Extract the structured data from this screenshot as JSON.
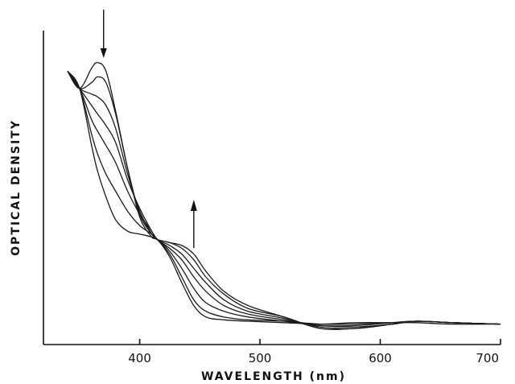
{
  "chart_data": {
    "type": "line",
    "title": "",
    "xlabel": "WAVELENGTH (nm)",
    "ylabel": "OPTICAL DENSITY",
    "xlim": [
      320,
      700
    ],
    "ylim": [
      0,
      1
    ],
    "x_ticks": [
      400,
      500,
      600,
      700
    ],
    "x_tick_labels": [
      "400",
      "500",
      "600",
      "700"
    ],
    "y_ticks_shown": false,
    "grid": false,
    "legend": "none",
    "line_color": "#1a1a1a",
    "arrows": [
      {
        "x": 370,
        "direction": "down"
      },
      {
        "x": 445,
        "direction": "up"
      }
    ],
    "series": [
      {
        "x": [
          340,
          350,
          360,
          365,
          372,
          380,
          390,
          400,
          410,
          415,
          425,
          435,
          445,
          455,
          470,
          490,
          520,
          550,
          580,
          610,
          630,
          660,
          700
        ],
        "values": [
          0.92,
          0.86,
          0.93,
          0.95,
          0.92,
          0.78,
          0.58,
          0.41,
          0.34,
          0.33,
          0.27,
          0.18,
          0.1,
          0.06,
          0.05,
          0.045,
          0.04,
          0.035,
          0.04,
          0.04,
          0.04,
          0.035,
          0.035
        ]
      },
      {
        "x": [
          340,
          350,
          360,
          365,
          372,
          380,
          390,
          400,
          410,
          415,
          425,
          435,
          445,
          455,
          470,
          490,
          520,
          550,
          580,
          610,
          630,
          660,
          700
        ],
        "values": [
          0.92,
          0.86,
          0.88,
          0.9,
          0.88,
          0.77,
          0.58,
          0.42,
          0.35,
          0.33,
          0.28,
          0.2,
          0.12,
          0.08,
          0.06,
          0.05,
          0.045,
          0.035,
          0.035,
          0.04,
          0.045,
          0.04,
          0.035
        ]
      },
      {
        "x": [
          340,
          350,
          360,
          365,
          372,
          380,
          390,
          400,
          410,
          415,
          425,
          435,
          445,
          455,
          470,
          490,
          520,
          550,
          580,
          610,
          630,
          660,
          700
        ],
        "values": [
          0.92,
          0.86,
          0.84,
          0.83,
          0.8,
          0.72,
          0.56,
          0.43,
          0.35,
          0.33,
          0.29,
          0.23,
          0.16,
          0.11,
          0.08,
          0.06,
          0.045,
          0.03,
          0.03,
          0.04,
          0.045,
          0.04,
          0.035
        ]
      },
      {
        "x": [
          340,
          350,
          360,
          365,
          372,
          380,
          390,
          400,
          410,
          415,
          425,
          435,
          445,
          455,
          470,
          490,
          520,
          550,
          580,
          610,
          630,
          660,
          700
        ],
        "values": [
          0.92,
          0.86,
          0.8,
          0.77,
          0.73,
          0.67,
          0.54,
          0.44,
          0.36,
          0.33,
          0.3,
          0.26,
          0.2,
          0.15,
          0.1,
          0.07,
          0.05,
          0.03,
          0.025,
          0.035,
          0.045,
          0.04,
          0.035
        ]
      },
      {
        "x": [
          340,
          350,
          360,
          365,
          372,
          380,
          390,
          400,
          410,
          415,
          425,
          435,
          445,
          455,
          470,
          490,
          520,
          550,
          580,
          610,
          630,
          660,
          700
        ],
        "values": [
          0.92,
          0.86,
          0.75,
          0.71,
          0.66,
          0.6,
          0.5,
          0.42,
          0.36,
          0.33,
          0.31,
          0.28,
          0.23,
          0.18,
          0.12,
          0.08,
          0.055,
          0.025,
          0.02,
          0.035,
          0.045,
          0.04,
          0.035
        ]
      },
      {
        "x": [
          340,
          350,
          360,
          365,
          372,
          380,
          390,
          400,
          410,
          415,
          425,
          435,
          445,
          455,
          470,
          490,
          520,
          550,
          580,
          610,
          630,
          660,
          700
        ],
        "values": [
          0.92,
          0.86,
          0.7,
          0.63,
          0.56,
          0.5,
          0.43,
          0.38,
          0.35,
          0.33,
          0.32,
          0.3,
          0.26,
          0.2,
          0.14,
          0.09,
          0.06,
          0.02,
          0.02,
          0.035,
          0.045,
          0.04,
          0.035
        ]
      },
      {
        "x": [
          340,
          350,
          360,
          365,
          372,
          380,
          390,
          400,
          410,
          415,
          425,
          435,
          445,
          455,
          470,
          490,
          520,
          550,
          580,
          610,
          630,
          660,
          700
        ],
        "values": [
          0.92,
          0.86,
          0.66,
          0.57,
          0.48,
          0.4,
          0.36,
          0.35,
          0.34,
          0.33,
          0.32,
          0.31,
          0.28,
          0.22,
          0.15,
          0.1,
          0.06,
          0.02,
          0.02,
          0.035,
          0.045,
          0.04,
          0.035
        ]
      }
    ]
  }
}
